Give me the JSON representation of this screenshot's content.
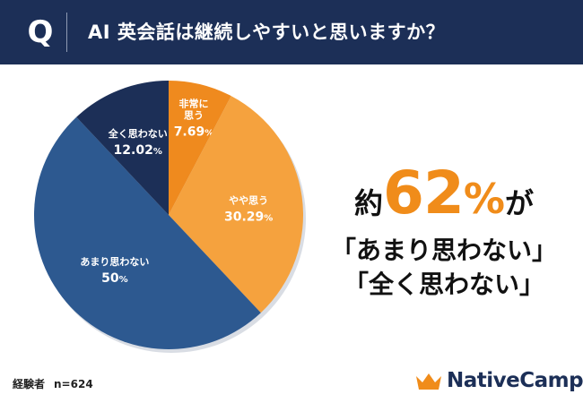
{
  "header": {
    "q_label": "Q",
    "question": "AI 英会話は継続しやすいと思いますか？"
  },
  "chart_data": {
    "type": "pie",
    "title": "AI 英会話は継続しやすいと思いますか？",
    "start_angle_deg": 0,
    "direction": "clockwise",
    "slices": [
      {
        "name": "非常に\n思う",
        "value": 7.69,
        "label": "7.69",
        "color": "#ef8a1e",
        "text_color": "#ffffff"
      },
      {
        "name": "やや思う",
        "value": 30.29,
        "label": "30.29",
        "color": "#f5a23e",
        "text_color": "#ffffff"
      },
      {
        "name": "あまり思わない",
        "value": 50,
        "label": "50",
        "color": "#2d5990",
        "text_color": "#ffffff"
      },
      {
        "name": "全く思わない",
        "value": 12.02,
        "label": "12.02",
        "color": "#1c2f57",
        "text_color": "#ffffff"
      }
    ],
    "percent_symbol": "%"
  },
  "headline": {
    "prefix": "約",
    "number": "62",
    "percent": "%",
    "suffix": "が",
    "line2": "「あまり思わない」",
    "line3": "「全く思わない」"
  },
  "footer": {
    "respondents_label": "経験者",
    "respondents_count": "n=624"
  },
  "logo": {
    "text_main": "NativeCamp",
    "text_dot": ".",
    "crown_color": "#f08c1a"
  }
}
